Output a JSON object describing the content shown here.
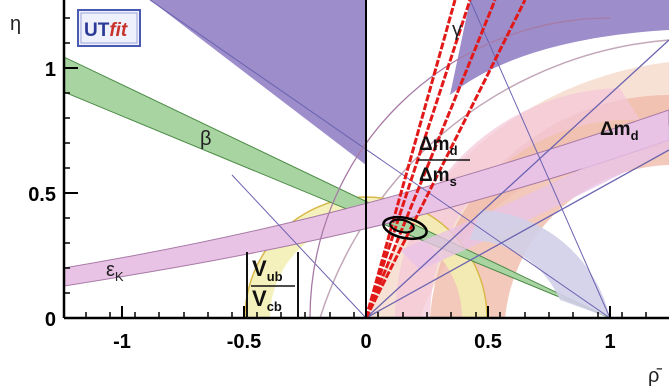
{
  "logo": {
    "text_a": "UT",
    "text_b": "fit"
  },
  "chart_data": {
    "type": "scatter",
    "xlabel": "ρ̄",
    "ylabel": "η",
    "xlim": [
      -1.25,
      1.25
    ],
    "ylim": [
      0,
      1.27
    ],
    "xticks": [
      -1,
      -0.5,
      0,
      0.5,
      1
    ],
    "xtick_labels": [
      "-1",
      "-0.5",
      "0",
      "0.5",
      "1"
    ],
    "yticks": [
      0,
      0.5,
      1
    ],
    "ytick_labels": [
      "0",
      "0.5",
      "1"
    ],
    "best_fit": {
      "rho": 0.154,
      "eta": 0.342
    },
    "annotations": {
      "gamma": "γ",
      "beta": "β",
      "epsilon": "ε",
      "epsilon_sub": "K",
      "dmd_label": "Δm",
      "dmd_sub": "d",
      "ratio_num": "Δm",
      "ratio_num_sub": "d",
      "ratio_den": "Δm",
      "ratio_den_sub": "s",
      "vub": "V",
      "vub_sub": "ub",
      "vcb": "V",
      "vcb_sub": "cb"
    },
    "colors": {
      "background": "#ffffff",
      "excluded_region": "#9d8dcb",
      "beta_band": "#a8d4a2",
      "epsilon_band": "#e9c3e6",
      "dmd_band": "#f5d4c2",
      "ratio_band": "#efb7a6",
      "vub_band": "#f2efb0",
      "gamma_lines": "#e21919",
      "sin2bx_band": "#d2cfe8",
      "fit_contour": "#000000"
    },
    "grid": false,
    "legend": "none"
  }
}
